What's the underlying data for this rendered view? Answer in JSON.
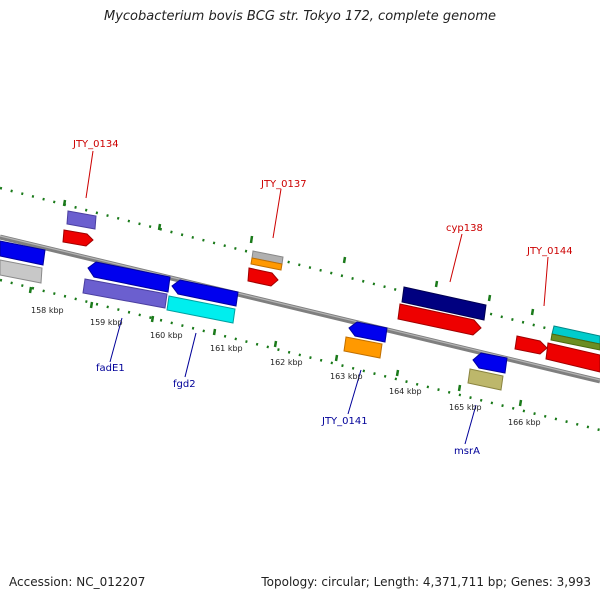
{
  "title": "Mycobacterium bovis BCG str. Tokyo 172, complete genome",
  "footer": {
    "accession": "Accession: NC_012207",
    "summary": "Topology: circular; Length: 4,371,711 bp; Genes: 3,993"
  },
  "colors": {
    "backbone": "#7f7f7f",
    "tick_outer": "#1a7a1a",
    "label_forward": "#cc0000",
    "label_reverse": "#000099"
  },
  "ticks": [
    {
      "label": "158 kbp"
    },
    {
      "label": "159 kbp"
    },
    {
      "label": "160 kbp"
    },
    {
      "label": "161 kbp"
    },
    {
      "label": "162 kbp"
    },
    {
      "label": "163 kbp"
    },
    {
      "label": "164 kbp"
    },
    {
      "label": "165 kbp"
    },
    {
      "label": "166 kbp"
    }
  ],
  "gene_labels": [
    {
      "text": "JTY_0134",
      "strand": "forward"
    },
    {
      "text": "JTY_0137",
      "strand": "forward"
    },
    {
      "text": "cyp138",
      "strand": "forward"
    },
    {
      "text": "JTY_0144",
      "strand": "forward"
    },
    {
      "text": "fadE1",
      "strand": "reverse"
    },
    {
      "text": "fgd2",
      "strand": "reverse"
    },
    {
      "text": "JTY_0141",
      "strand": "reverse"
    },
    {
      "text": "msrA",
      "strand": "reverse"
    }
  ]
}
